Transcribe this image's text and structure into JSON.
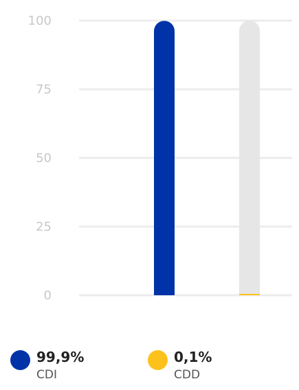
{
  "chart_data": {
    "type": "bar",
    "categories": [
      "CDI",
      "CDD"
    ],
    "series": [
      {
        "name": "CDI",
        "values": [
          99.9,
          0
        ]
      },
      {
        "name": "CDD",
        "values": [
          0,
          0.1
        ]
      }
    ],
    "y_ticks": [
      "100",
      "75",
      "50",
      "25",
      "0"
    ],
    "ylim": [
      0,
      100
    ],
    "grid": true,
    "legend_placement": "bottom"
  },
  "colors": {
    "cdi": "#0033a8",
    "cdd": "#fcc21b",
    "track": "#e6e6e6",
    "grid": "#ececec"
  },
  "legend": [
    {
      "value": "99,9%",
      "label": "CDI"
    },
    {
      "value": "0,1%",
      "label": "CDD"
    }
  ]
}
